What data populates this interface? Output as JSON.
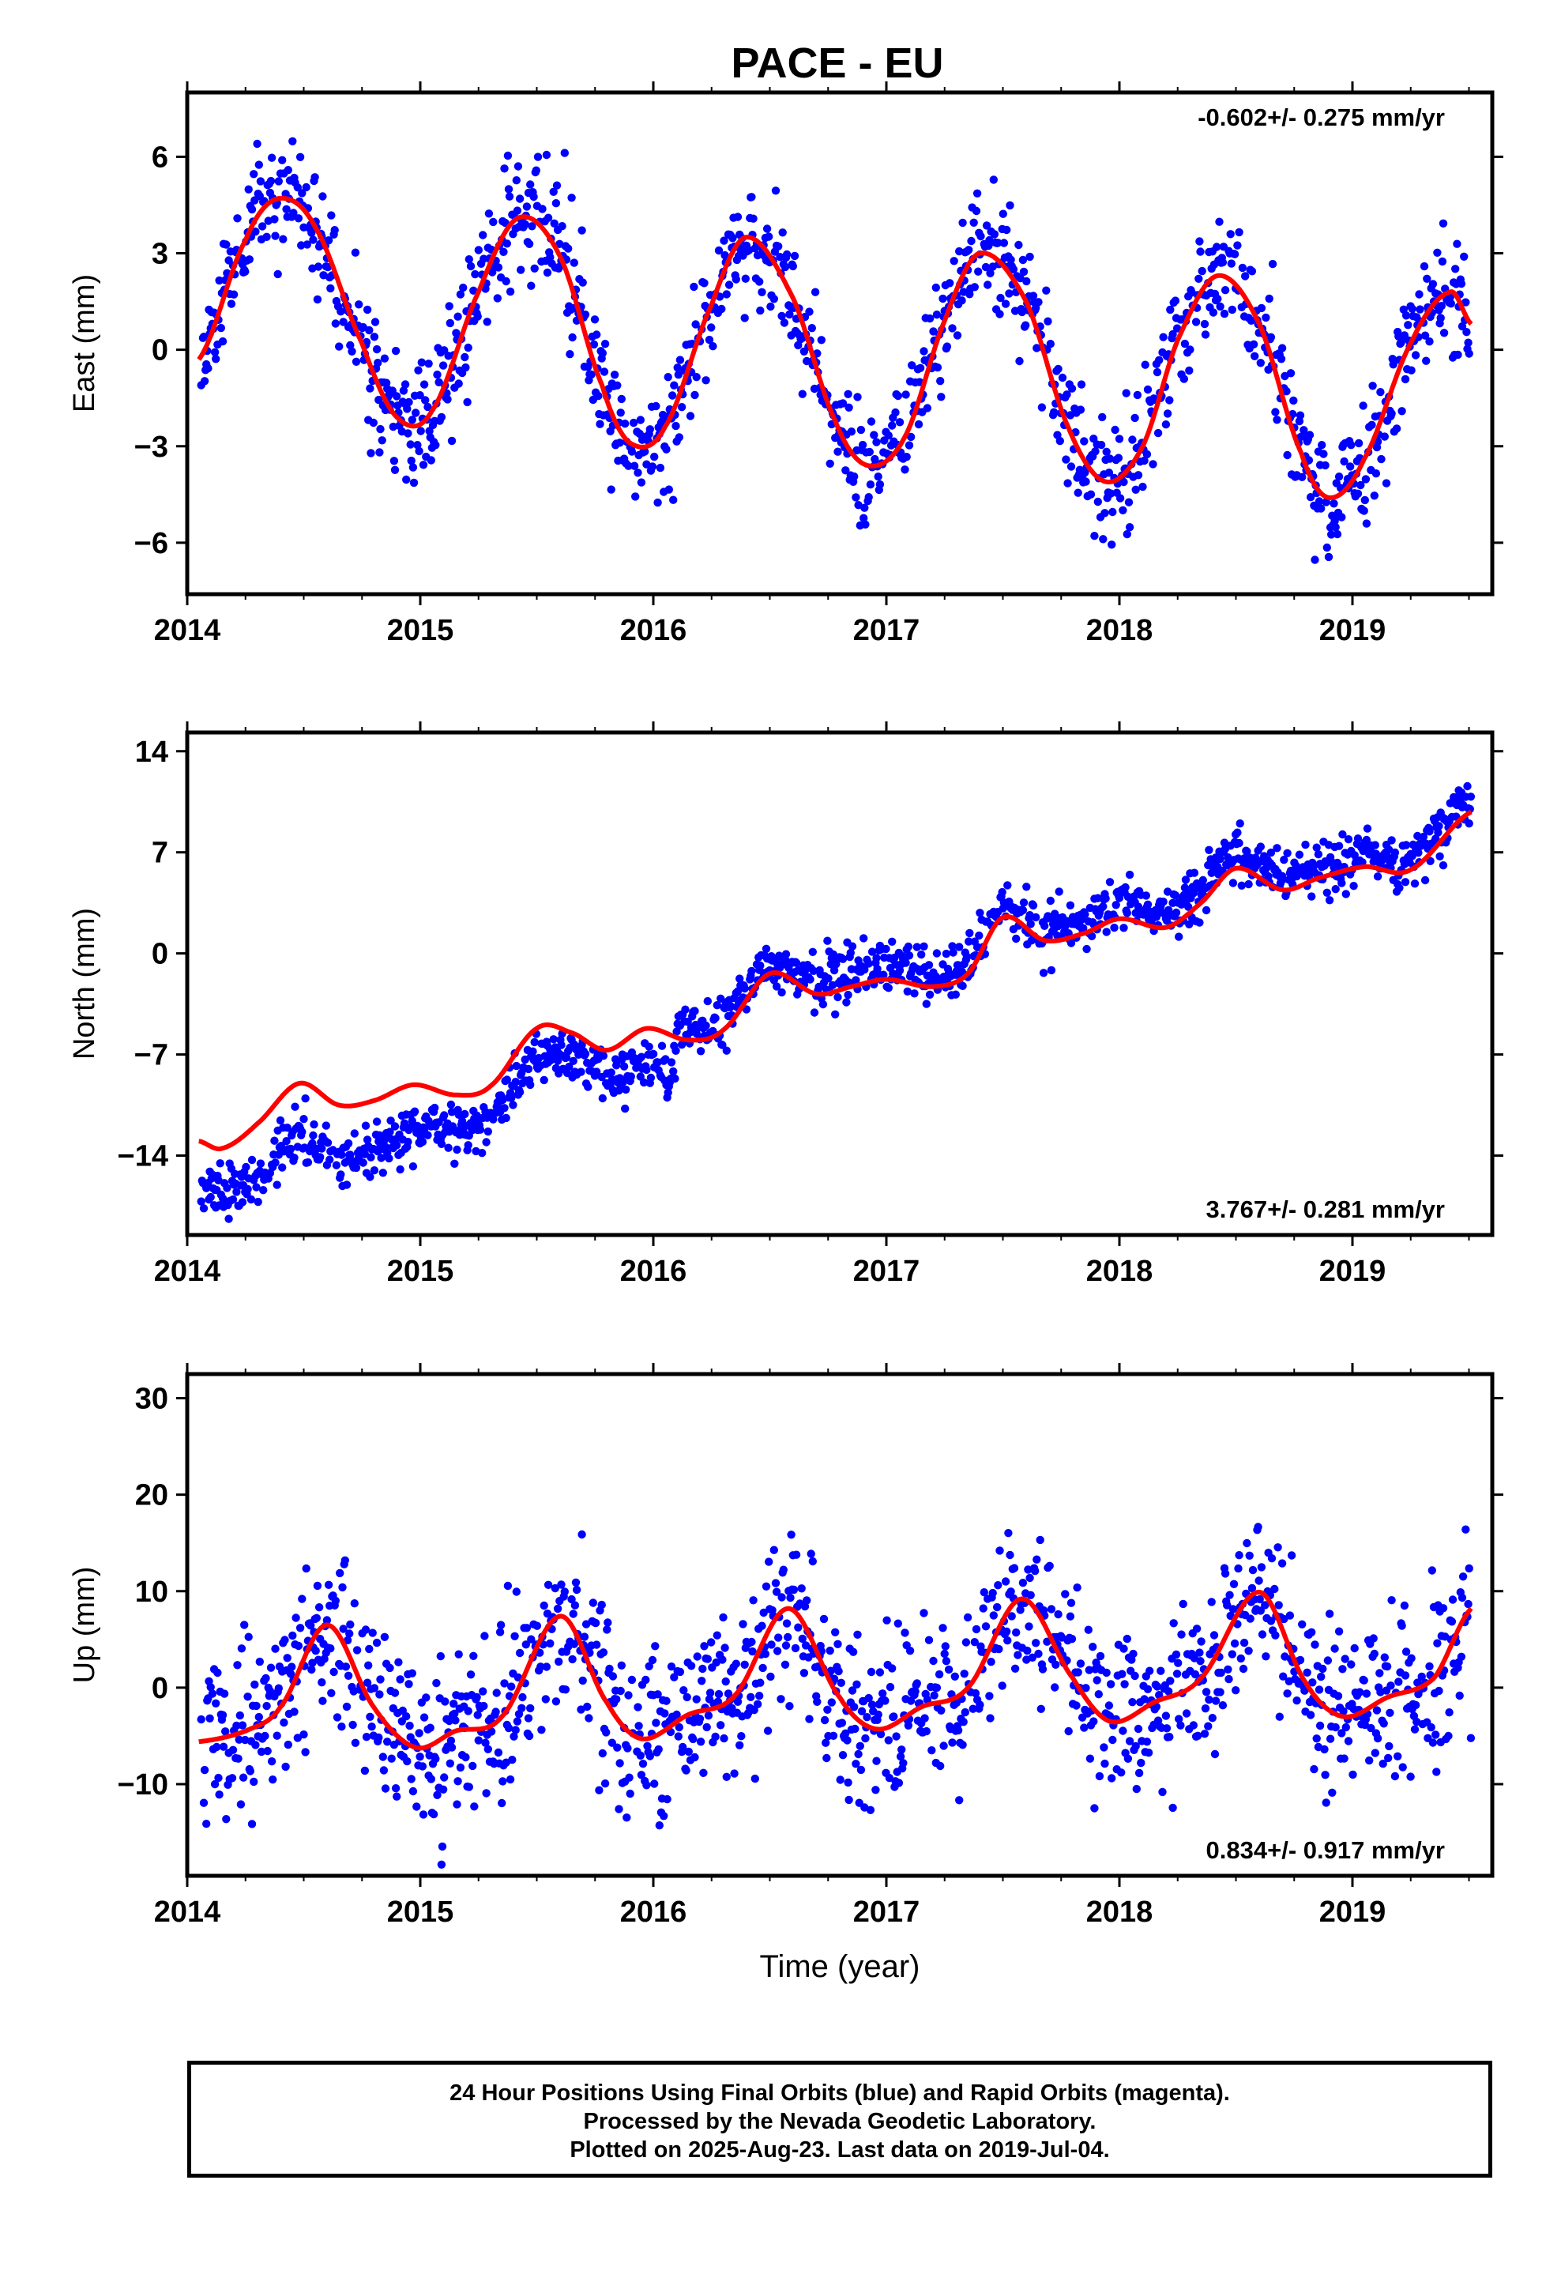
{
  "title": "PACE - EU",
  "footer": {
    "line1": "24 Hour Positions Using Final Orbits (blue) and Rapid Orbits (magenta).",
    "line2": "Processed by the Nevada Geodetic Laboratory.",
    "line3": "Plotted on 2025-Aug-23. Last data on 2019-Jul-04."
  },
  "chart_data": [
    {
      "type": "scatter",
      "ylabel": "East (mm)",
      "xlabel": "",
      "xlim": [
        2014,
        2019.6
      ],
      "ylim": [
        -7.6,
        8.0
      ],
      "x_ticks": [
        2014,
        2015,
        2016,
        2017,
        2018,
        2019
      ],
      "y_ticks": [
        6,
        3,
        0,
        -3,
        -6
      ],
      "y_tick_labels": [
        "6",
        "3",
        "0",
        "−3",
        "−6"
      ],
      "annotation": "-0.602+/- 0.275 mm/yr",
      "grid": false,
      "series": [
        {
          "color": "#0000ff",
          "style": "dots",
          "model": {
            "trend": -0.602,
            "amp": 3.6,
            "phase": 2014.39,
            "noise": 0.95,
            "seed": 11,
            "start": 2014.06,
            "end": 2019.51
          }
        },
        {
          "color": "#ff0000",
          "style": "line",
          "x": [
            2014.05,
            2014.25,
            2014.39,
            2014.55,
            2014.75,
            2014.9,
            2015.05,
            2015.25,
            2015.42,
            2015.6,
            2015.78,
            2015.9,
            2016.05,
            2016.25,
            2016.4,
            2016.6,
            2016.78,
            2016.92,
            2017.08,
            2017.25,
            2017.4,
            2017.6,
            2017.78,
            2017.94,
            2018.1,
            2018.25,
            2018.42,
            2018.6,
            2018.78,
            2018.9,
            2019.05,
            2019.25,
            2019.42,
            2019.51
          ],
          "y": [
            -0.3,
            3.4,
            4.7,
            3.8,
            0.2,
            -2.1,
            -1.9,
            1.8,
            4.1,
            2.9,
            -1.1,
            -2.9,
            -2.4,
            1.4,
            3.5,
            1.6,
            -2.2,
            -3.6,
            -2.7,
            0.9,
            3.0,
            1.5,
            -2.4,
            -4.1,
            -3.0,
            0.3,
            2.3,
            0.8,
            -3.2,
            -4.6,
            -3.4,
            0.2,
            1.8,
            0.8
          ]
        }
      ]
    },
    {
      "type": "scatter",
      "ylabel": "North (mm)",
      "xlabel": "",
      "xlim": [
        2014,
        2019.6
      ],
      "ylim": [
        -19.5,
        15.3
      ],
      "x_ticks": [
        2014,
        2015,
        2016,
        2017,
        2018,
        2019
      ],
      "y_ticks": [
        14,
        7,
        0,
        -7,
        -14
      ],
      "y_tick_labels": [
        "14",
        "7",
        "0",
        "−7",
        "−14"
      ],
      "annotation": "3.767+/- 0.281 mm/yr",
      "grid": false,
      "series": [
        {
          "color": "#0000ff",
          "style": "dots",
          "model": {
            "trend": 3.767,
            "offset_at": 2016.1,
            "offset": 6.0,
            "base": -13.5,
            "amp": 1.1,
            "phase": 2014.55,
            "noise": 0.9,
            "seed": 23,
            "start": 2014.06,
            "end": 2019.51
          }
        },
        {
          "color": "#ff0000",
          "style": "line",
          "x": [
            2014.05,
            2014.15,
            2014.3,
            2014.48,
            2014.65,
            2014.8,
            2014.97,
            2015.15,
            2015.3,
            2015.5,
            2015.65,
            2015.8,
            2015.97,
            2016.15,
            2016.3,
            2016.5,
            2016.7,
            2016.85,
            2017.0,
            2017.2,
            2017.35,
            2017.5,
            2017.68,
            2017.85,
            2018.0,
            2018.2,
            2018.35,
            2018.5,
            2018.7,
            2018.85,
            2019.05,
            2019.25,
            2019.51
          ],
          "y": [
            -13.0,
            -13.5,
            -11.8,
            -9.0,
            -10.5,
            -10.2,
            -9.1,
            -9.8,
            -9.2,
            -5.2,
            -5.5,
            -6.7,
            -5.2,
            -6.0,
            -5.3,
            -1.4,
            -2.8,
            -2.3,
            -1.8,
            -2.3,
            -1.4,
            2.5,
            0.9,
            1.4,
            2.4,
            1.8,
            3.5,
            5.9,
            4.4,
            5.2,
            6.0,
            5.8,
            9.8
          ]
        }
      ]
    },
    {
      "type": "scatter",
      "ylabel": "Up (mm)",
      "xlabel": "Time (year)",
      "xlim": [
        2014,
        2019.6
      ],
      "ylim": [
        -19.5,
        32.5
      ],
      "x_ticks": [
        2014,
        2015,
        2016,
        2017,
        2018,
        2019
      ],
      "y_ticks": [
        30,
        20,
        10,
        0,
        -10
      ],
      "y_tick_labels": [
        "30",
        "20",
        "10",
        "0",
        "−10"
      ],
      "annotation": "0.834+/- 0.917 mm/yr",
      "grid": false,
      "series": [
        {
          "color": "#0000ff",
          "style": "dots",
          "model": {
            "trend": 0.834,
            "amp": 6.0,
            "phase": 2014.6,
            "noise": 4.2,
            "seed": 37,
            "start": 2014.06,
            "end": 2019.51
          }
        },
        {
          "color": "#ff0000",
          "style": "line",
          "x": [
            2014.05,
            2014.25,
            2014.4,
            2014.6,
            2014.8,
            2014.98,
            2015.15,
            2015.35,
            2015.6,
            2015.8,
            2015.95,
            2016.15,
            2016.35,
            2016.58,
            2016.8,
            2016.96,
            2017.15,
            2017.35,
            2017.58,
            2017.8,
            2017.96,
            2018.15,
            2018.35,
            2018.6,
            2018.8,
            2018.96,
            2019.15,
            2019.35,
            2019.51
          ],
          "y": [
            -5.6,
            -4.5,
            -2.0,
            6.5,
            -2.0,
            -6.2,
            -4.5,
            -3.0,
            7.4,
            -1.5,
            -5.3,
            -2.8,
            -0.8,
            8.2,
            -1.0,
            -4.3,
            -2.0,
            0.0,
            9.2,
            1.0,
            -3.5,
            -1.5,
            1.0,
            9.9,
            0.5,
            -3.0,
            -1.0,
            1.0,
            8.2
          ]
        }
      ]
    }
  ]
}
